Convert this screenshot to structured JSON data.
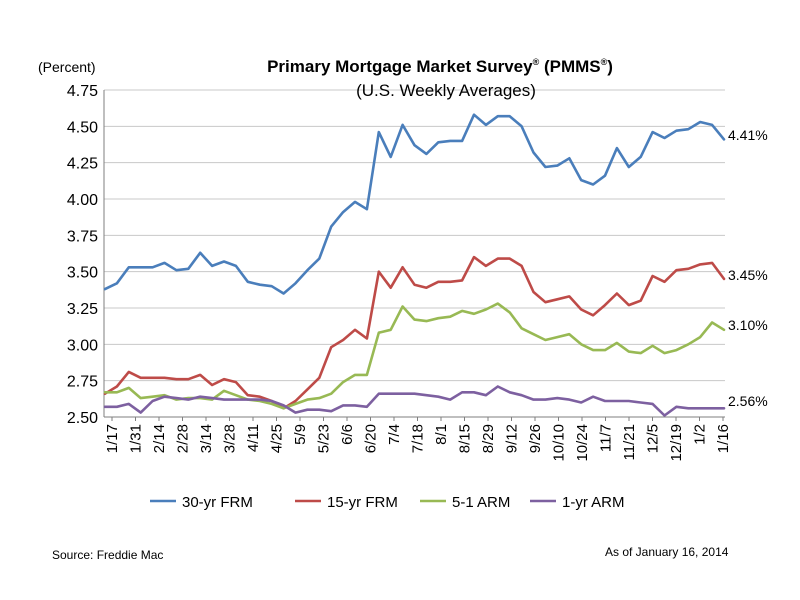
{
  "chart_data": {
    "type": "line",
    "title": "Primary Mortgage Market Survey",
    "title_mark": "®",
    "title_abbr": "(PMMS",
    "title_abbr_mark": "®",
    "title_abbr_close": ")",
    "subtitle": "(U.S. Weekly Averages)",
    "ylabel": "(Percent)",
    "ylim": [
      2.5,
      4.75
    ],
    "yticks": [
      "2.50",
      "2.75",
      "3.00",
      "3.25",
      "3.50",
      "3.75",
      "4.00",
      "4.25",
      "4.50",
      "4.75"
    ],
    "xticklabels": [
      "1/17",
      "1/31",
      "2/14",
      "2/28",
      "3/14",
      "3/28",
      "4/11",
      "4/25",
      "5/9",
      "5/23",
      "6/6",
      "6/20",
      "7/4",
      "7/18",
      "8/1",
      "8/15",
      "8/29",
      "9/12",
      "9/26",
      "10/10",
      "10/24",
      "11/7",
      "11/21",
      "12/5",
      "12/19",
      "1/2",
      "1/16"
    ],
    "grid": "horizontal",
    "legend": "bottom",
    "series": [
      {
        "name": "30-yr FRM",
        "color": "#4a7ebb",
        "end_label": "4.41%",
        "values": [
          3.38,
          3.42,
          3.53,
          3.53,
          3.53,
          3.56,
          3.51,
          3.52,
          3.63,
          3.54,
          3.57,
          3.54,
          3.43,
          3.41,
          3.4,
          3.35,
          3.42,
          3.51,
          3.59,
          3.81,
          3.91,
          3.98,
          3.93,
          4.46,
          4.29,
          4.51,
          4.37,
          4.31,
          4.39,
          4.4,
          4.4,
          4.58,
          4.51,
          4.57,
          4.57,
          4.5,
          4.32,
          4.22,
          4.23,
          4.28,
          4.13,
          4.1,
          4.16,
          4.35,
          4.22,
          4.29,
          4.46,
          4.42,
          4.47,
          4.48,
          4.53,
          4.51,
          4.41
        ]
      },
      {
        "name": "15-yr FRM",
        "color": "#be4b48",
        "end_label": "3.45%",
        "values": [
          2.66,
          2.71,
          2.81,
          2.77,
          2.77,
          2.77,
          2.76,
          2.76,
          2.79,
          2.72,
          2.76,
          2.74,
          2.65,
          2.64,
          2.61,
          2.56,
          2.61,
          2.69,
          2.77,
          2.98,
          3.03,
          3.1,
          3.04,
          3.5,
          3.39,
          3.53,
          3.41,
          3.39,
          3.43,
          3.43,
          3.44,
          3.6,
          3.54,
          3.59,
          3.59,
          3.54,
          3.36,
          3.29,
          3.31,
          3.33,
          3.24,
          3.2,
          3.27,
          3.35,
          3.27,
          3.3,
          3.47,
          3.43,
          3.51,
          3.52,
          3.55,
          3.56,
          3.45
        ]
      },
      {
        "name": "5-1 ARM",
        "color": "#98b954",
        "end_label": "3.10%",
        "values": [
          2.67,
          2.67,
          2.7,
          2.63,
          2.64,
          2.65,
          2.62,
          2.63,
          2.63,
          2.62,
          2.68,
          2.65,
          2.62,
          2.61,
          2.59,
          2.56,
          2.59,
          2.62,
          2.63,
          2.66,
          2.74,
          2.79,
          2.79,
          3.08,
          3.1,
          3.26,
          3.17,
          3.16,
          3.18,
          3.19,
          3.23,
          3.21,
          3.24,
          3.28,
          3.22,
          3.11,
          3.07,
          3.03,
          3.05,
          3.07,
          3.0,
          2.96,
          2.96,
          3.01,
          2.95,
          2.94,
          2.99,
          2.94,
          2.96,
          3.0,
          3.05,
          3.15,
          3.1
        ]
      },
      {
        "name": "1-yr ARM",
        "color": "#7d60a0",
        "end_label": "2.56%",
        "values": [
          2.57,
          2.57,
          2.59,
          2.53,
          2.61,
          2.64,
          2.63,
          2.62,
          2.64,
          2.63,
          2.62,
          2.62,
          2.62,
          2.62,
          2.61,
          2.58,
          2.53,
          2.55,
          2.55,
          2.54,
          2.58,
          2.58,
          2.57,
          2.66,
          2.66,
          2.66,
          2.66,
          2.65,
          2.64,
          2.62,
          2.67,
          2.67,
          2.65,
          2.71,
          2.67,
          2.65,
          2.62,
          2.62,
          2.63,
          2.62,
          2.6,
          2.64,
          2.61,
          2.61,
          2.61,
          2.6,
          2.59,
          2.51,
          2.57,
          2.56,
          2.56,
          2.56,
          2.56
        ]
      }
    ]
  },
  "footer": {
    "source": "Source: Freddie Mac",
    "as_of": "As of January 16, 2014"
  }
}
